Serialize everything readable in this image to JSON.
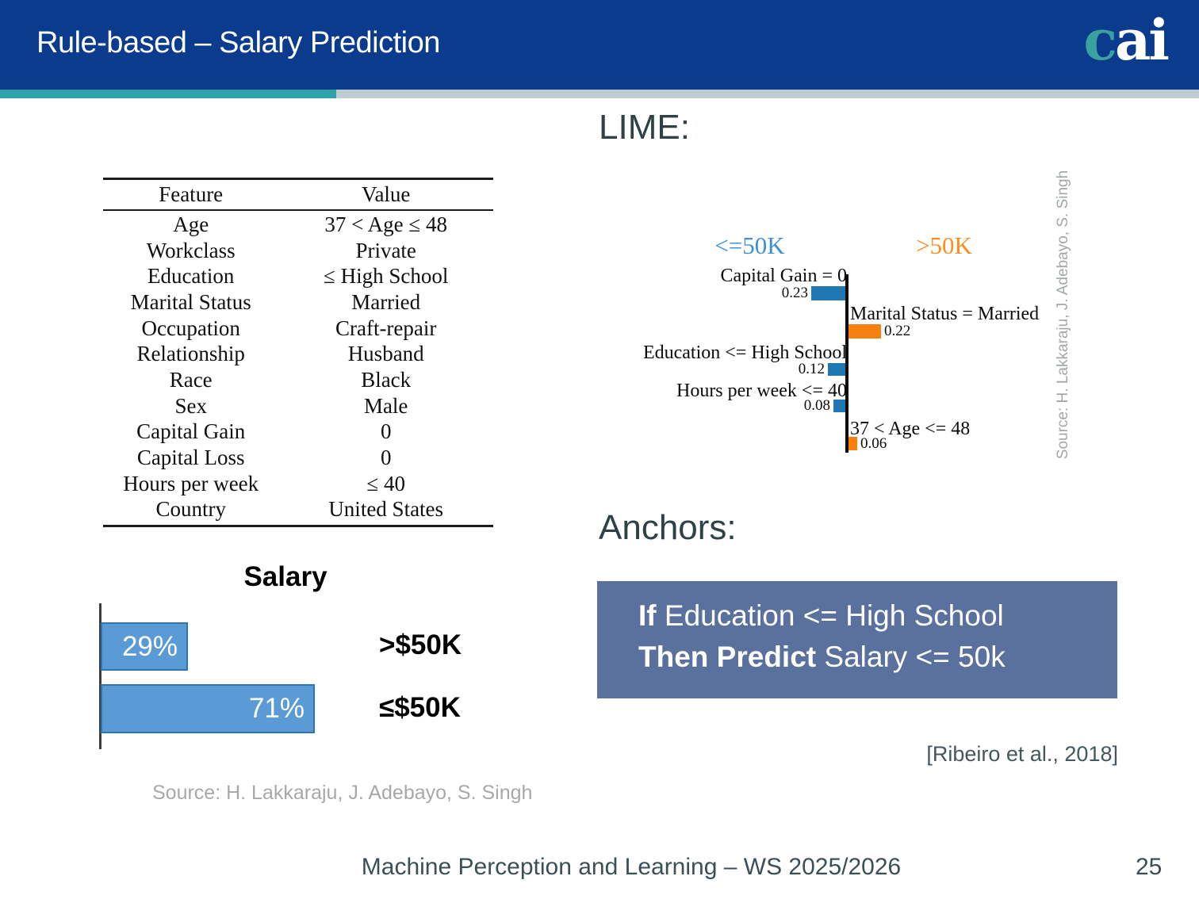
{
  "slide": {
    "header": {
      "title": "Rule-based – Salary Prediction",
      "logo_c": "c",
      "logo_ai": "ai"
    },
    "headings": {
      "lime": "LIME:",
      "anchors": "Anchors:"
    },
    "feature_table": {
      "columns": [
        "Feature",
        "Value"
      ],
      "rows": [
        [
          "Age",
          "37 < Age ≤ 48"
        ],
        [
          "Workclass",
          "Private"
        ],
        [
          "Education",
          "≤ High School"
        ],
        [
          "Marital Status",
          "Married"
        ],
        [
          "Occupation",
          "Craft-repair"
        ],
        [
          "Relationship",
          "Husband"
        ],
        [
          "Race",
          "Black"
        ],
        [
          "Sex",
          "Male"
        ],
        [
          "Capital Gain",
          "0"
        ],
        [
          "Capital Loss",
          "0"
        ],
        [
          "Hours per week",
          "≤ 40"
        ],
        [
          "Country",
          "United States"
        ]
      ]
    },
    "anchors_rule": {
      "if_kw": "If",
      "if_rest": " Education <= High School",
      "then_kw": "Then Predict",
      "then_rest": " Salary <= 50k"
    },
    "citations": {
      "ribeiro": "[Ribeiro et al., 2018]",
      "source_bottom": "Source: H. Lakkaraju, J. Adebayo, S. Singh",
      "source_side": "Source: H. Lakkaraju, J. Adebayo, S. Singh"
    },
    "footer": {
      "course": "Machine Perception and Learning – WS 2025/2026",
      "page": "25"
    }
  },
  "colors": {
    "header_bar": "#0b3b8c",
    "teal_accent": "#32a2aa",
    "gray_accent": "#bfcdd2",
    "heading_slate": "#2d4147",
    "anchors_box": "#5a719d",
    "logo_teal": "#3aa0a0"
  },
  "chart_data": [
    {
      "id": "salary_distribution",
      "type": "bar",
      "orientation": "horizontal",
      "title": "Salary",
      "categories": [
        ">$50K",
        "≤$50K"
      ],
      "values": [
        29,
        71
      ],
      "value_labels": [
        "29%",
        "71%"
      ],
      "xlim": [
        0,
        100
      ],
      "bar_fill": "#5b9bd5",
      "bar_border": "#2e75b6",
      "grid": false,
      "legend_position": "none"
    },
    {
      "id": "lime_explanation",
      "type": "bar",
      "orientation": "horizontal-diverging",
      "method": "LIME",
      "classes": [
        {
          "label": "<=50K",
          "side": "left",
          "color": "#3e8fd4"
        },
        {
          "label": ">50K",
          "side": "right",
          "color": "#ff8c1e"
        }
      ],
      "rows": [
        {
          "feature": "Capital Gain = 0",
          "weight": 0.23,
          "class": "<=50K",
          "side": "left"
        },
        {
          "feature": "Marital Status = Married",
          "weight": 0.22,
          "class": ">50K",
          "side": "right"
        },
        {
          "feature": "Education <= High School",
          "weight": 0.12,
          "class": "<=50K",
          "side": "left"
        },
        {
          "feature": "Hours per week <= 40",
          "weight": 0.08,
          "class": "<=50K",
          "side": "left"
        },
        {
          "feature": "37 < Age <= 48",
          "weight": 0.06,
          "class": ">50K",
          "side": "right"
        }
      ],
      "bar_colors": {
        "left": "#1f77b4",
        "right": "#f8800f"
      },
      "axis": "vertical-zero-line",
      "grid": false
    }
  ]
}
